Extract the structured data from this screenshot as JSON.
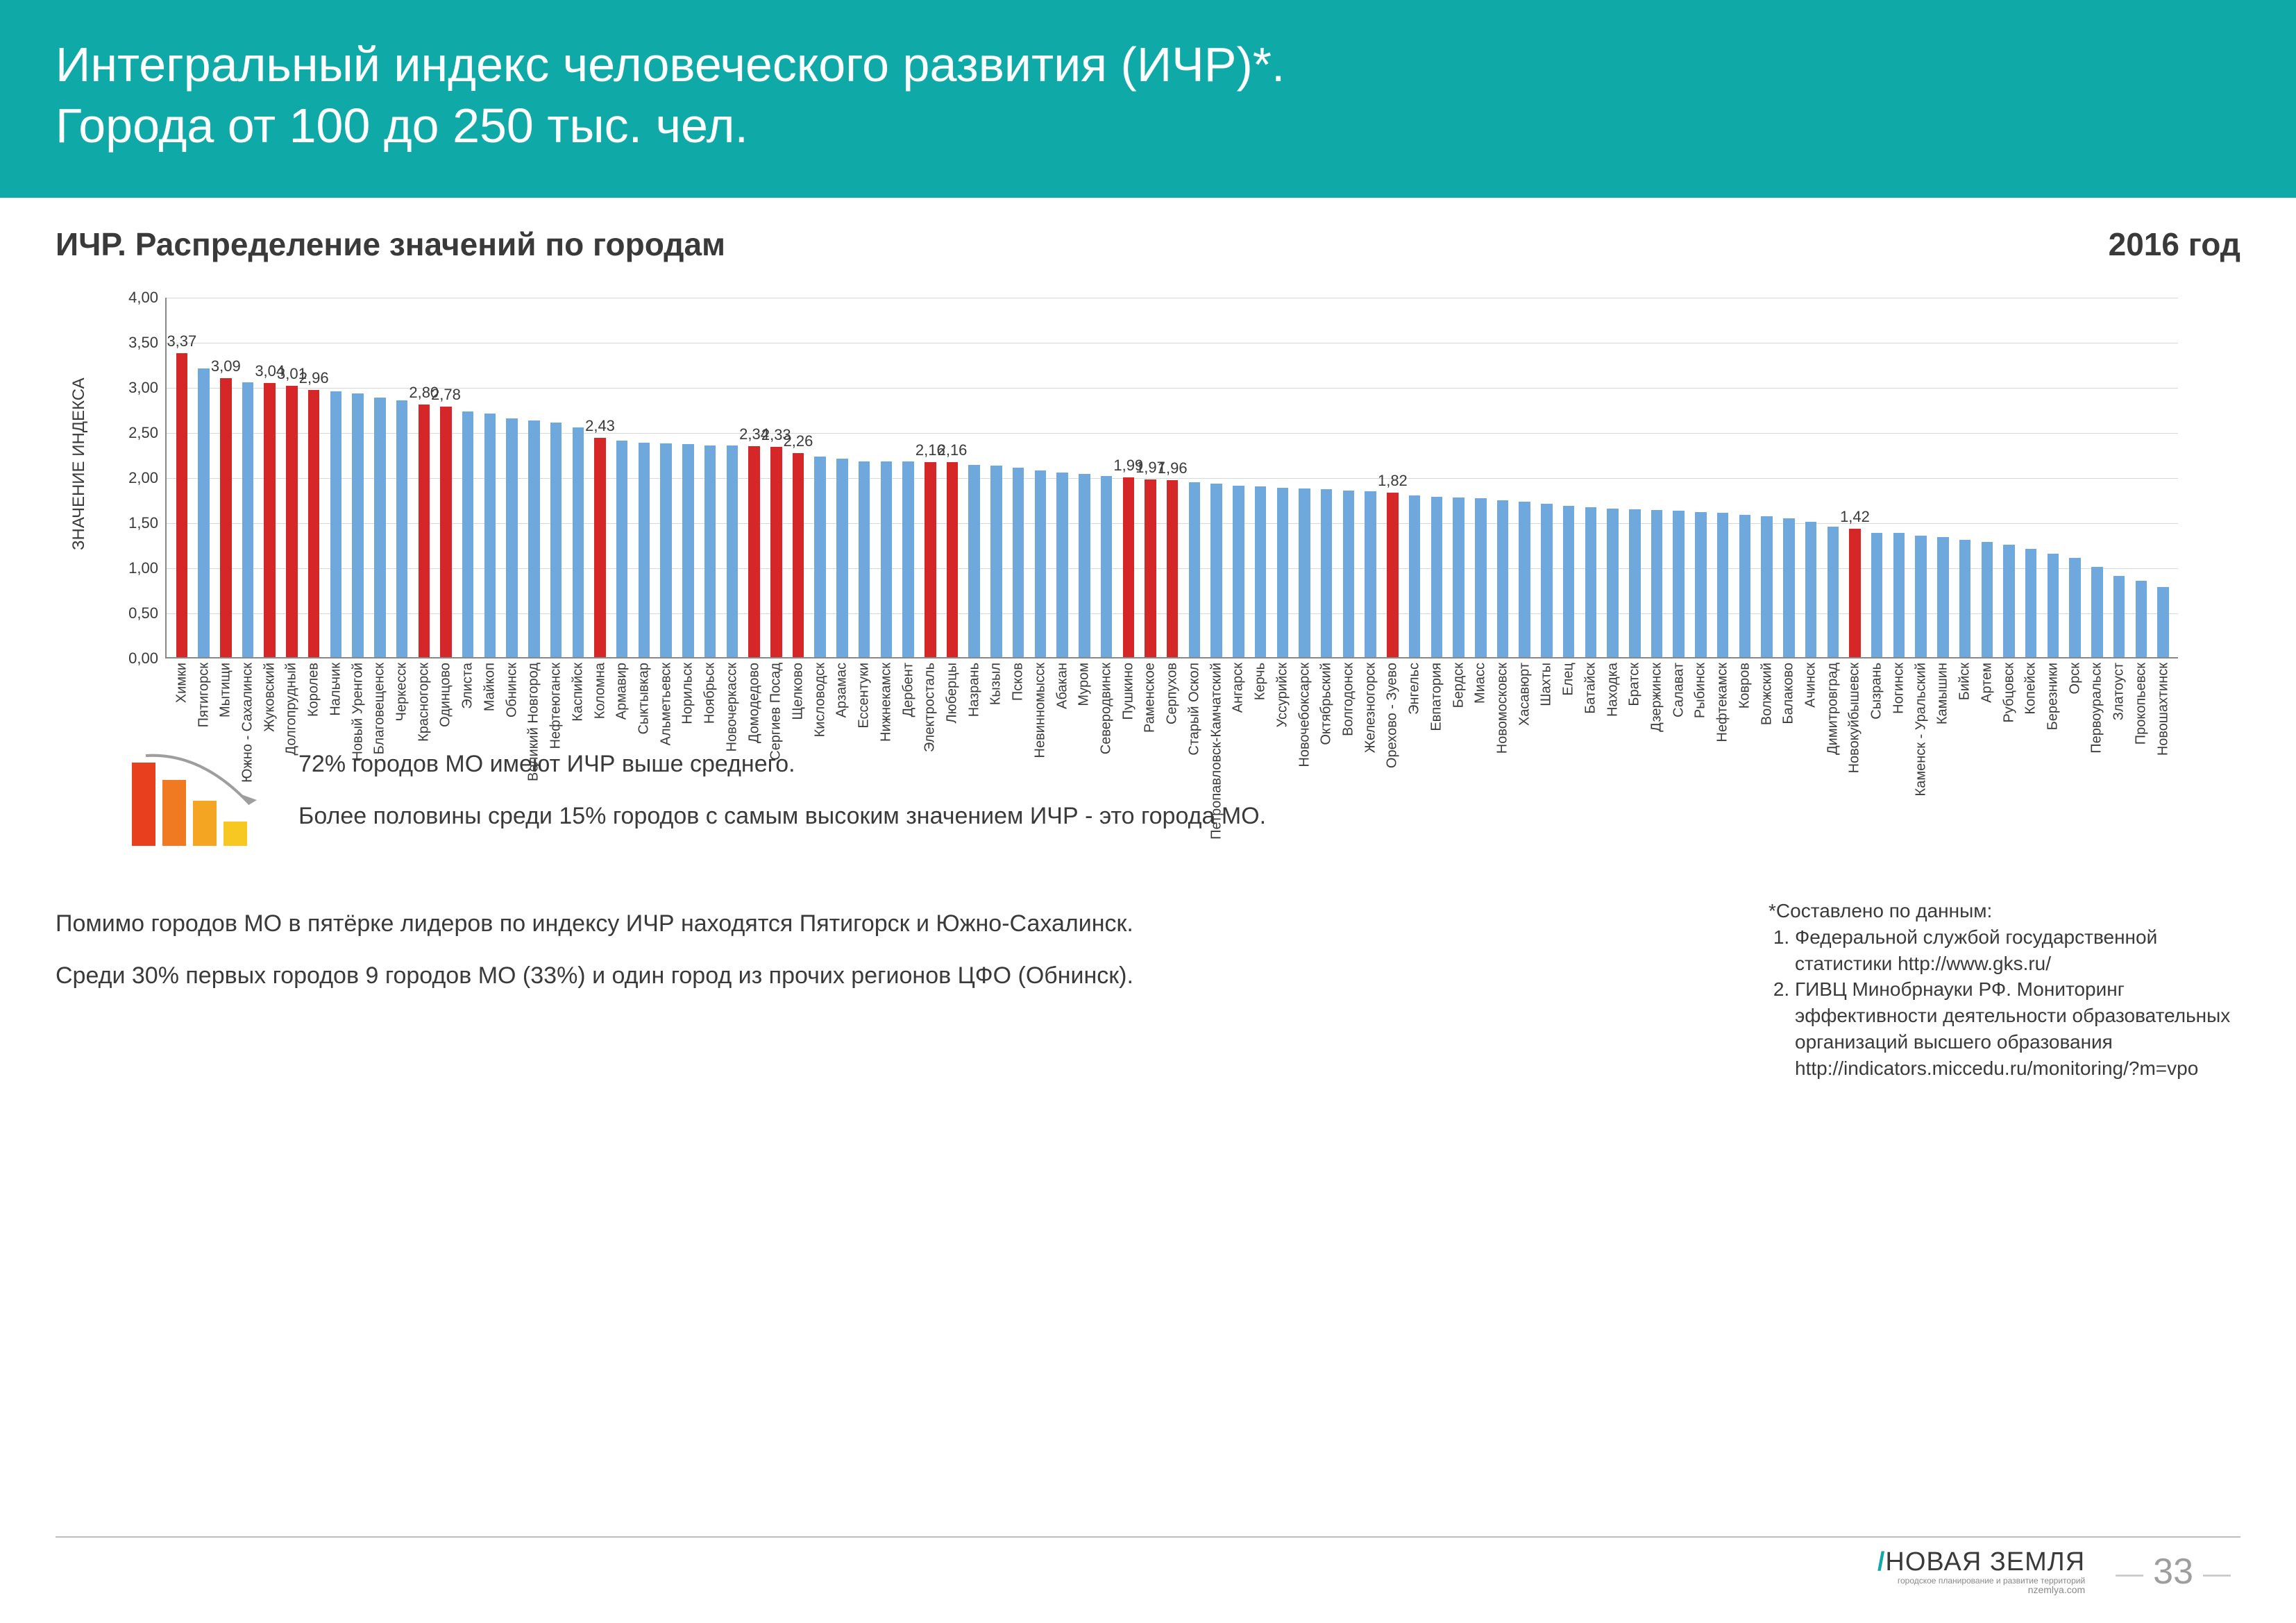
{
  "header": {
    "title_line1": "Интегральный индекс человеческого развития (ИЧР)*.",
    "title_line2": "Города от 100 до 250 тыс. чел."
  },
  "subheader": "ИЧР. Распределение значений по городам",
  "year": "2016 год",
  "chart": {
    "type": "bar",
    "ylabel": "ЗНАЧЕНИЕ ИНДЕКСА",
    "ymin": 0.0,
    "ymax": 4.0,
    "ystep": 0.5,
    "colors": {
      "blue": "#6fa8dc",
      "red": "#d62728"
    },
    "grid_color": "#d8d8d8",
    "axis_color": "#888888",
    "label_fontsize": 22,
    "xlabel_fontsize": 20,
    "bars": [
      {
        "name": "Химки",
        "value": 3.37,
        "hl": true,
        "show": "3,37"
      },
      {
        "name": "Пятигорск",
        "value": 3.2,
        "hl": false
      },
      {
        "name": "Мытищи",
        "value": 3.09,
        "hl": true,
        "show": "3,09"
      },
      {
        "name": "Южно - Сахалинск",
        "value": 3.05,
        "hl": false
      },
      {
        "name": "Жуковский",
        "value": 3.04,
        "hl": true,
        "show": "3,04"
      },
      {
        "name": "Долгопрудный",
        "value": 3.01,
        "hl": true,
        "show": "3,01"
      },
      {
        "name": "Королев",
        "value": 2.96,
        "hl": true,
        "show": "2,96"
      },
      {
        "name": "Нальчик",
        "value": 2.95,
        "hl": false
      },
      {
        "name": "Новый Уренгой",
        "value": 2.92,
        "hl": false
      },
      {
        "name": "Благовещенск",
        "value": 2.88,
        "hl": false
      },
      {
        "name": "Черкесск",
        "value": 2.85,
        "hl": false
      },
      {
        "name": "Красногорск",
        "value": 2.8,
        "hl": true,
        "show": "2,80"
      },
      {
        "name": "Одинцово",
        "value": 2.78,
        "hl": true,
        "show": "2,78"
      },
      {
        "name": "Элиста",
        "value": 2.72,
        "hl": false
      },
      {
        "name": "Майкоп",
        "value": 2.7,
        "hl": false
      },
      {
        "name": "Обнинск",
        "value": 2.65,
        "hl": false
      },
      {
        "name": "Великий Новгород",
        "value": 2.62,
        "hl": false
      },
      {
        "name": "Нефтеюганск",
        "value": 2.6,
        "hl": false
      },
      {
        "name": "Каспийск",
        "value": 2.55,
        "hl": false
      },
      {
        "name": "Коломна",
        "value": 2.43,
        "hl": true,
        "show": "2,43"
      },
      {
        "name": "Армавир",
        "value": 2.4,
        "hl": false
      },
      {
        "name": "Сыктывкар",
        "value": 2.38,
        "hl": false
      },
      {
        "name": "Альметьевск",
        "value": 2.37,
        "hl": false
      },
      {
        "name": "Норильск",
        "value": 2.36,
        "hl": false
      },
      {
        "name": "Ноябрьск",
        "value": 2.35,
        "hl": false
      },
      {
        "name": "Новочеркасск",
        "value": 2.35,
        "hl": false
      },
      {
        "name": "Домодедово",
        "value": 2.34,
        "hl": true,
        "show": "2,34"
      },
      {
        "name": "Сергиев Посад",
        "value": 2.33,
        "hl": true,
        "show": "2,33"
      },
      {
        "name": "Щелково",
        "value": 2.26,
        "hl": true,
        "show": "2,26"
      },
      {
        "name": "Кисловодск",
        "value": 2.22,
        "hl": false
      },
      {
        "name": "Арзамас",
        "value": 2.2,
        "hl": false
      },
      {
        "name": "Ессентуки",
        "value": 2.17,
        "hl": false
      },
      {
        "name": "Нижнекамск",
        "value": 2.17,
        "hl": false
      },
      {
        "name": "Дербент",
        "value": 2.17,
        "hl": false
      },
      {
        "name": "Электросталь",
        "value": 2.16,
        "hl": true,
        "show": "2,16"
      },
      {
        "name": "Люберцы",
        "value": 2.16,
        "hl": true,
        "show": "2,16"
      },
      {
        "name": "Назрань",
        "value": 2.13,
        "hl": false
      },
      {
        "name": "Кызыл",
        "value": 2.12,
        "hl": false
      },
      {
        "name": "Псков",
        "value": 2.1,
        "hl": false
      },
      {
        "name": "Невинномысск",
        "value": 2.07,
        "hl": false
      },
      {
        "name": "Абакан",
        "value": 2.05,
        "hl": false
      },
      {
        "name": "Муром",
        "value": 2.03,
        "hl": false
      },
      {
        "name": "Северодвинск",
        "value": 2.01,
        "hl": false
      },
      {
        "name": "Пушкино",
        "value": 1.99,
        "hl": true,
        "show": "1,99"
      },
      {
        "name": "Раменское",
        "value": 1.97,
        "hl": true,
        "show": "1,97"
      },
      {
        "name": "Серпухов",
        "value": 1.96,
        "hl": true,
        "show": "1,96"
      },
      {
        "name": "Старый Оскол",
        "value": 1.94,
        "hl": false
      },
      {
        "name": "Петропавловск-Камчатский",
        "value": 1.92,
        "hl": false
      },
      {
        "name": "Ангарск",
        "value": 1.9,
        "hl": false
      },
      {
        "name": "Керчь",
        "value": 1.89,
        "hl": false
      },
      {
        "name": "Уссурийск",
        "value": 1.88,
        "hl": false
      },
      {
        "name": "Новочебоксарск",
        "value": 1.87,
        "hl": false
      },
      {
        "name": "Октябрьский",
        "value": 1.86,
        "hl": false
      },
      {
        "name": "Волгодонск",
        "value": 1.85,
        "hl": false
      },
      {
        "name": "Железногорск",
        "value": 1.84,
        "hl": false
      },
      {
        "name": "Орехово - Зуево",
        "value": 1.82,
        "hl": true,
        "show": "1,82"
      },
      {
        "name": "Энгельс",
        "value": 1.79,
        "hl": false
      },
      {
        "name": "Евпатория",
        "value": 1.78,
        "hl": false
      },
      {
        "name": "Бердск",
        "value": 1.77,
        "hl": false
      },
      {
        "name": "Миасс",
        "value": 1.76,
        "hl": false
      },
      {
        "name": "Новомосковск",
        "value": 1.74,
        "hl": false
      },
      {
        "name": "Хасавюрт",
        "value": 1.72,
        "hl": false
      },
      {
        "name": "Шахты",
        "value": 1.7,
        "hl": false
      },
      {
        "name": "Елец",
        "value": 1.68,
        "hl": false
      },
      {
        "name": "Батайск",
        "value": 1.66,
        "hl": false
      },
      {
        "name": "Находка",
        "value": 1.65,
        "hl": false
      },
      {
        "name": "Братск",
        "value": 1.64,
        "hl": false
      },
      {
        "name": "Дзержинск",
        "value": 1.63,
        "hl": false
      },
      {
        "name": "Салават",
        "value": 1.62,
        "hl": false
      },
      {
        "name": "Рыбинск",
        "value": 1.61,
        "hl": false
      },
      {
        "name": "Нефтекамск",
        "value": 1.6,
        "hl": false
      },
      {
        "name": "Ковров",
        "value": 1.58,
        "hl": false
      },
      {
        "name": "Волжский",
        "value": 1.56,
        "hl": false
      },
      {
        "name": "Балаково",
        "value": 1.54,
        "hl": false
      },
      {
        "name": "Ачинск",
        "value": 1.5,
        "hl": false
      },
      {
        "name": "Димитровград",
        "value": 1.45,
        "hl": false
      },
      {
        "name": "Новокуйбышевск",
        "value": 1.42,
        "hl": true,
        "show": "1,42"
      },
      {
        "name": "Сызрань",
        "value": 1.38,
        "hl": false
      },
      {
        "name": "Ногинск",
        "value": 1.38,
        "hl": false
      },
      {
        "name": "Каменск - Уральский",
        "value": 1.35,
        "hl": false
      },
      {
        "name": "Камышин",
        "value": 1.33,
        "hl": false
      },
      {
        "name": "Бийск",
        "value": 1.3,
        "hl": false
      },
      {
        "name": "Артем",
        "value": 1.28,
        "hl": false
      },
      {
        "name": "Рубцовск",
        "value": 1.25,
        "hl": false
      },
      {
        "name": "Копейск",
        "value": 1.2,
        "hl": false
      },
      {
        "name": "Березники",
        "value": 1.15,
        "hl": false
      },
      {
        "name": "Орск",
        "value": 1.1,
        "hl": false
      },
      {
        "name": "Первоуральск",
        "value": 1.0,
        "hl": false
      },
      {
        "name": "Златоуст",
        "value": 0.9,
        "hl": false
      },
      {
        "name": "Прокопьевск",
        "value": 0.85,
        "hl": false
      },
      {
        "name": "Новошахтинск",
        "value": 0.78,
        "hl": false
      }
    ]
  },
  "info": {
    "line1": "72% городов МО имеют ИЧР выше среднего.",
    "line2": "Более половины среди 15% городов с самым высоким значением ИЧР - это города МО."
  },
  "lower": {
    "p1": "Помимо городов МО в пятёрке лидеров по индексу ИЧР находятся Пятигорск и Южно-Сахалинск.",
    "p2": "Среди 30% первых городов 9 городов МО (33%) и один город из прочих регионов ЦФО (Обнинск)."
  },
  "footnotes": {
    "heading": "*Составлено по данным:",
    "item1": "Федеральной службой государственной статистики http://www.gks.ru/",
    "item2": "ГИВЦ Минобрнауки РФ. Мониторинг эффективности деятельности образовательных организаций высшего образования http://indicators.miccedu.ru/monitoring/?m=vpo"
  },
  "footer": {
    "logo_main": "НОВАЯ ЗЕМЛЯ",
    "logo_sub": "городское планирование и развитие территорий",
    "logo_url": "nzemlya.com",
    "page": "33"
  },
  "icon_colors": {
    "c1": "#e8401f",
    "c2": "#f07a22",
    "c3": "#f4a522",
    "c4": "#f8c822",
    "arrow": "#9e9e9e"
  }
}
